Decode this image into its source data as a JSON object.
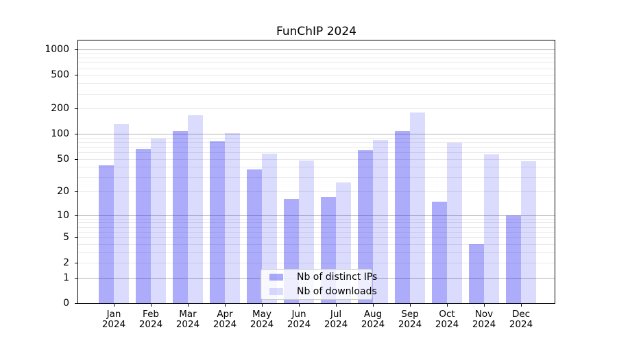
{
  "title": "FunChIP 2024",
  "chart_data": {
    "type": "bar",
    "title": "FunChIP 2024",
    "categories": [
      "Jan",
      "Feb",
      "Mar",
      "Apr",
      "May",
      "Jun",
      "Jul",
      "Aug",
      "Sep",
      "Oct",
      "Nov",
      "Dec"
    ],
    "category_year": "2024",
    "series": [
      {
        "name": "Nb of distinct IPs",
        "color": "rgba(16,16,240,0.35)",
        "values": [
          42,
          66,
          109,
          82,
          37,
          16,
          17,
          64,
          108,
          15,
          4,
          10
        ]
      },
      {
        "name": "Nb of downloads",
        "color": "rgba(16,16,240,0.15)",
        "values": [
          130,
          87,
          166,
          103,
          58,
          48,
          26,
          84,
          180,
          78,
          57,
          47
        ]
      }
    ],
    "yscale": "log1p",
    "ylim": [
      0,
      1330
    ],
    "yticks": [
      0,
      1,
      2,
      5,
      10,
      20,
      50,
      100,
      200,
      500,
      1000
    ],
    "major_gridlines": [
      1,
      10,
      100,
      1000
    ],
    "minor_gridlines": [
      2,
      3,
      4,
      5,
      6,
      7,
      8,
      9,
      20,
      30,
      40,
      50,
      60,
      70,
      80,
      90,
      200,
      300,
      400,
      500,
      600,
      700,
      800,
      900
    ],
    "grid": true,
    "legend_position": "inside-bottom-center",
    "legend_items": [
      "Nb of distinct IPs",
      "Nb of downloads"
    ]
  },
  "colors": {
    "background": "#ffffff",
    "axis": "#000000",
    "major_grid": "#b0b0b0",
    "minor_grid": "#e8e8ec",
    "text": "#000000",
    "ip_bar": "rgba(16,16,240,0.35)",
    "dl_bar": "rgba(16,16,240,0.15)",
    "legend_bg": "rgba(255,255,255,0.8)",
    "legend_border": "#cccccc"
  }
}
